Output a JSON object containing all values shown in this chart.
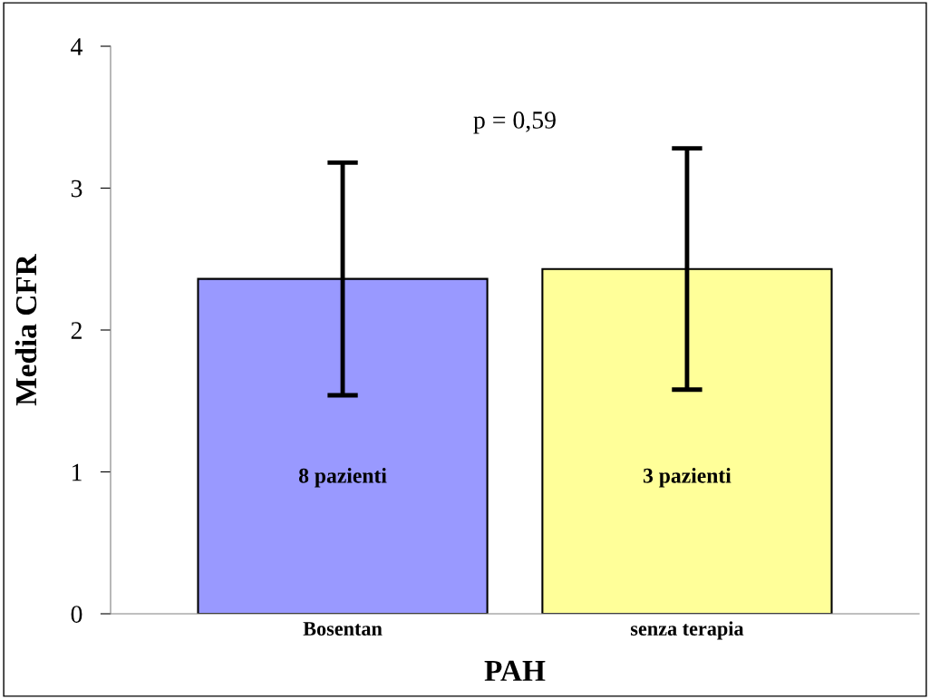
{
  "chart_data": {
    "type": "bar",
    "xlabel": "PAH",
    "ylabel": "Media CFR",
    "categories": [
      "Bosentan",
      "senza terapia"
    ],
    "values": [
      2.36,
      2.43
    ],
    "colors": [
      "#9999ff",
      "#ffff99"
    ],
    "errors": [
      [
        1.54,
        3.18
      ],
      [
        1.58,
        3.28
      ]
    ],
    "ylim": [
      0,
      4
    ],
    "yticks": [
      0,
      1,
      2,
      3,
      4
    ],
    "grid": false,
    "legend": false,
    "annotations": [
      "p = 0,59",
      "8 pazienti",
      "3 pazienti"
    ]
  }
}
